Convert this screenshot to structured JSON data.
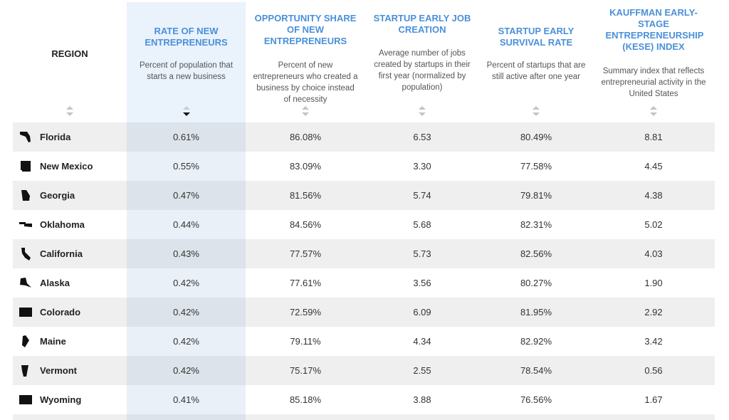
{
  "header": {
    "region": "REGION",
    "columns": [
      {
        "title": "RATE OF NEW ENTREPRENEURS",
        "description": "Percent of population that starts a new business"
      },
      {
        "title": "OPPORTUNITY SHARE OF NEW ENTREPRENEURS",
        "description": "Percent of new entrepreneurs who created a business by choice instead of necessity"
      },
      {
        "title": "STARTUP EARLY JOB CREATION",
        "description": "Average number of jobs created by startups in their first year (normalized by population)"
      },
      {
        "title": "STARTUP EARLY SURVIVAL RATE",
        "description": "Percent of startups that are still active after one year"
      },
      {
        "title": "KAUFFMAN EARLY-STAGE ENTREPRENEURSHIP (KESE) INDEX",
        "description": "Summary index that reflects entrepreneurial activity in the United States"
      }
    ]
  },
  "table": {
    "rows": [
      {
        "region": "Florida",
        "values": [
          "0.61%",
          "86.08%",
          "6.53",
          "80.49%",
          "8.81"
        ]
      },
      {
        "region": "New Mexico",
        "values": [
          "0.55%",
          "83.09%",
          "3.30",
          "77.58%",
          "4.45"
        ]
      },
      {
        "region": "Georgia",
        "values": [
          "0.47%",
          "81.56%",
          "5.74",
          "79.81%",
          "4.38"
        ]
      },
      {
        "region": "Oklahoma",
        "values": [
          "0.44%",
          "84.56%",
          "5.68",
          "82.31%",
          "5.02"
        ]
      },
      {
        "region": "California",
        "values": [
          "0.43%",
          "77.57%",
          "5.73",
          "82.56%",
          "4.03"
        ]
      },
      {
        "region": "Alaska",
        "values": [
          "0.42%",
          "77.61%",
          "3.56",
          "80.27%",
          "1.90"
        ]
      },
      {
        "region": "Colorado",
        "values": [
          "0.42%",
          "72.59%",
          "6.09",
          "81.95%",
          "2.92"
        ]
      },
      {
        "region": "Maine",
        "values": [
          "0.42%",
          "79.11%",
          "4.34",
          "82.92%",
          "3.42"
        ]
      },
      {
        "region": "Vermont",
        "values": [
          "0.42%",
          "75.17%",
          "2.55",
          "78.54%",
          "0.56"
        ]
      },
      {
        "region": "Wyoming",
        "values": [
          "0.41%",
          "85.18%",
          "3.88",
          "76.56%",
          "1.67"
        ]
      }
    ]
  }
}
